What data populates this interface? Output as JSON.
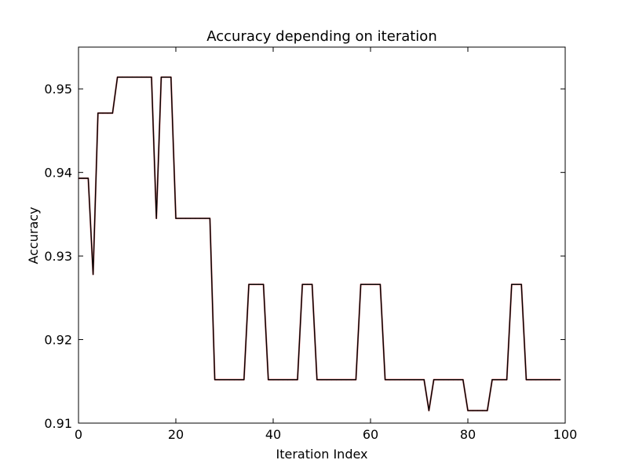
{
  "chart_data": {
    "type": "line",
    "title": "Accuracy depending on iteration",
    "xlabel": "Iteration Index",
    "ylabel": "Accuracy",
    "xlim": [
      0,
      100
    ],
    "ylim": [
      0.91,
      0.955
    ],
    "grid": false,
    "xticks": [
      0,
      20,
      40,
      60,
      80,
      100
    ],
    "xtick_labels": [
      "0",
      "20",
      "40",
      "60",
      "80",
      "100"
    ],
    "yticks": [
      0.91,
      0.92,
      0.93,
      0.94,
      0.95
    ],
    "ytick_labels": [
      "0.91",
      "0.92",
      "0.93",
      "0.94",
      "0.95"
    ],
    "series": [
      {
        "color": "#000000",
        "x": [
          0,
          1,
          2,
          3,
          4,
          5,
          6,
          7,
          8,
          9,
          10,
          11,
          12,
          13,
          14,
          15,
          16,
          17,
          18,
          19,
          20,
          21,
          22,
          23,
          24,
          25,
          26,
          27,
          28,
          29,
          30,
          31,
          32,
          33,
          34,
          35,
          36,
          37,
          38,
          39,
          40,
          41,
          42,
          43,
          44,
          45,
          46,
          47,
          48,
          49,
          50,
          51,
          52,
          53,
          54,
          55,
          56,
          57,
          58,
          59,
          60,
          61,
          62,
          63,
          64,
          65,
          66,
          67,
          68,
          69,
          70,
          71,
          72,
          73,
          74,
          75,
          76,
          77,
          78,
          79,
          80,
          81,
          82,
          83,
          84,
          85,
          86,
          87,
          88,
          89,
          90,
          91,
          92,
          93,
          94,
          95,
          96,
          97,
          98,
          99
        ],
        "y": [
          0.9393,
          0.9393,
          0.9393,
          0.9278,
          0.9471,
          0.9471,
          0.9471,
          0.9471,
          0.9514,
          0.9514,
          0.9514,
          0.9514,
          0.9514,
          0.9514,
          0.9514,
          0.9514,
          0.9345,
          0.9514,
          0.9514,
          0.9514,
          0.9345,
          0.9345,
          0.9345,
          0.9345,
          0.9345,
          0.9345,
          0.9345,
          0.9345,
          0.9152,
          0.9152,
          0.9152,
          0.9152,
          0.9152,
          0.9152,
          0.9152,
          0.9266,
          0.9266,
          0.9266,
          0.9266,
          0.9152,
          0.9152,
          0.9152,
          0.9152,
          0.9152,
          0.9152,
          0.9152,
          0.9266,
          0.9266,
          0.9266,
          0.9152,
          0.9152,
          0.9152,
          0.9152,
          0.9152,
          0.9152,
          0.9152,
          0.9152,
          0.9152,
          0.9266,
          0.9266,
          0.9266,
          0.9266,
          0.9266,
          0.9152,
          0.9152,
          0.9152,
          0.9152,
          0.9152,
          0.9152,
          0.9152,
          0.9152,
          0.9152,
          0.9115,
          0.9152,
          0.9152,
          0.9152,
          0.9152,
          0.9152,
          0.9152,
          0.9152,
          0.9115,
          0.9115,
          0.9115,
          0.9115,
          0.9115,
          0.9152,
          0.9152,
          0.9152,
          0.9152,
          0.9266,
          0.9266,
          0.9266,
          0.9152,
          0.9152,
          0.9152,
          0.9152,
          0.9152,
          0.9152,
          0.9152,
          0.9152
        ]
      }
    ]
  }
}
